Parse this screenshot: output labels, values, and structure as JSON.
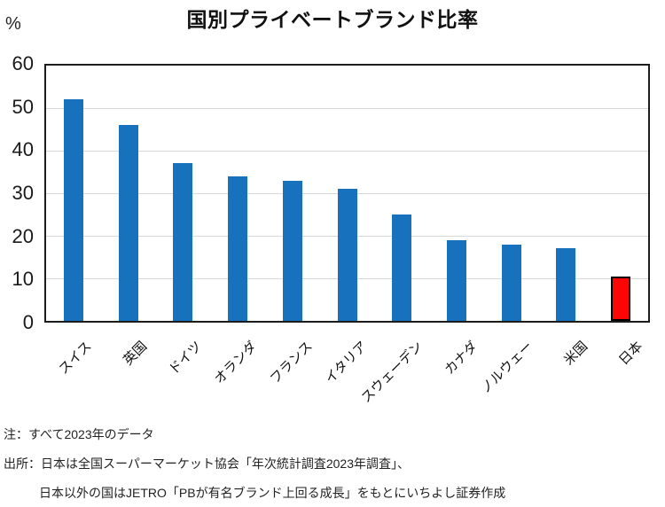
{
  "chart_data": {
    "type": "bar",
    "title": "国別プライベートブランド比率",
    "unit_label": "%",
    "categories": [
      "スイス",
      "英国",
      "ドイツ",
      "オランダ",
      "フランス",
      "イタリア",
      "スウェーデン",
      "カナダ",
      "ノルウェー",
      "米国",
      "日本"
    ],
    "values": [
      52,
      46,
      37,
      34,
      33,
      31,
      25,
      19,
      18,
      17,
      10.5
    ],
    "highlight_category": "日本",
    "bar_color": "#1771bd",
    "highlight_color": "#fb0505",
    "highlight_border_color": "#000000",
    "ylim": [
      0,
      60
    ],
    "yticks": [
      60,
      50,
      40,
      30,
      20,
      10,
      0
    ],
    "gridline_values": [
      50,
      40,
      30,
      20,
      10
    ],
    "grid": true,
    "legend": "none",
    "xlabel": "",
    "ylabel": "%"
  },
  "notes": {
    "line1": "注：すべて2023年のデータ",
    "line2": "出所：日本は全国スーパーマーケット協会「年次統計調査2023年調査」、",
    "line3": "日本以外の国はJETRO「PBが有名ブランド上回る成長」をもとにいちよし証券作成"
  }
}
